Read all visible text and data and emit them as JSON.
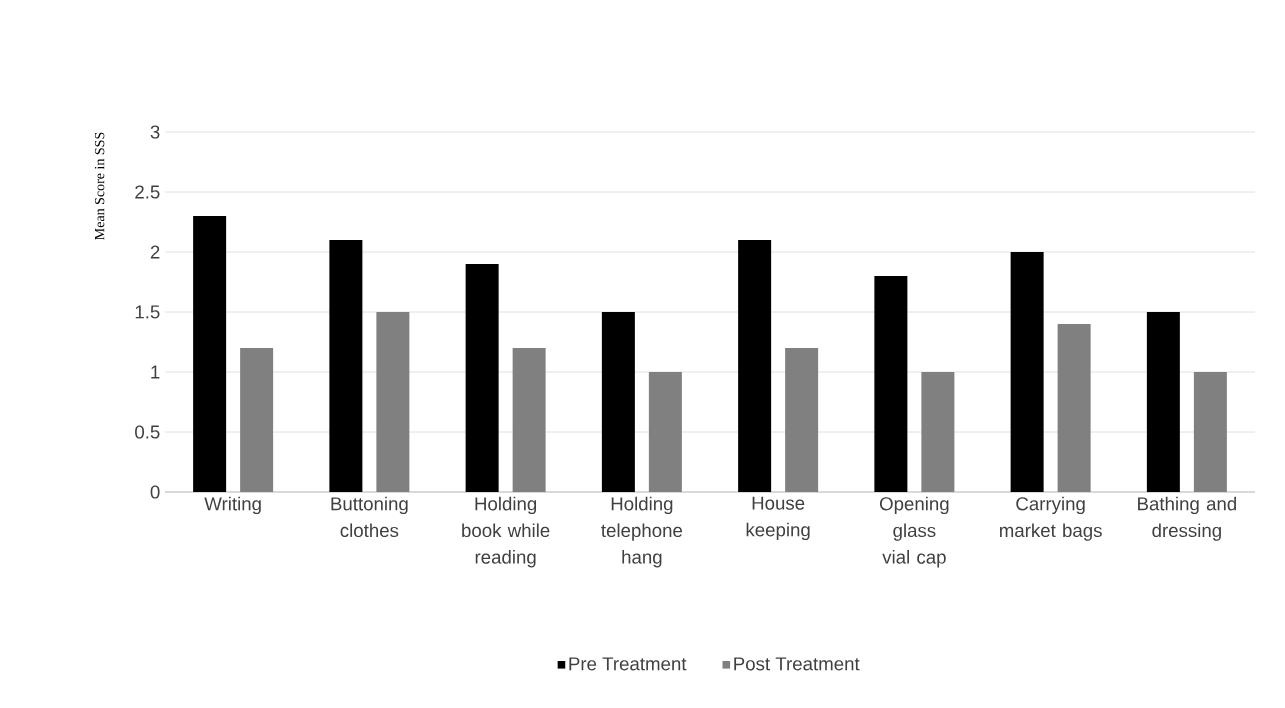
{
  "chart_data": {
    "type": "bar",
    "ylabel": "Mean Score in SSS",
    "categories": [
      "Writing",
      "Buttoning clothes",
      "Holding book while reading",
      "Holding telephone hang",
      "House keeping",
      "Opening glass vial cap",
      "Carrying market bags",
      "Bathing and dressing"
    ],
    "series": [
      {
        "name": "Pre Treatment",
        "color": "#000000",
        "values": [
          2.3,
          2.1,
          1.9,
          1.5,
          2.1,
          1.8,
          2.0,
          1.5
        ]
      },
      {
        "name": "Post Treatment",
        "color": "#808080",
        "values": [
          1.2,
          1.5,
          1.2,
          1.0,
          1.2,
          1.0,
          1.4,
          1.0
        ]
      }
    ],
    "ylim": [
      0,
      3
    ],
    "yticks": [
      0,
      0.5,
      1,
      1.5,
      2,
      2.5,
      3
    ],
    "grid": "y",
    "legend": "bottom"
  }
}
